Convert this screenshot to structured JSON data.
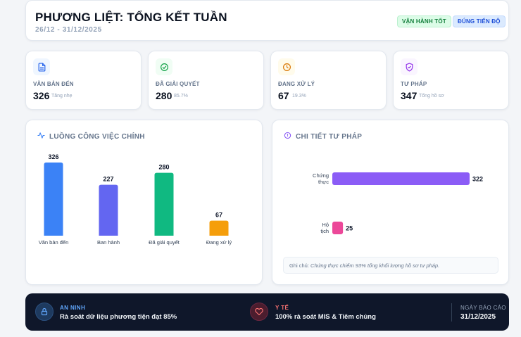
{
  "header": {
    "title": "PHƯƠNG LIỆT: TỔNG KẾT TUẦN",
    "date_range": "26/12 - 31/12/2025",
    "badge_status": "VẬN HÀNH TỐT",
    "badge_schedule": "ĐÚNG TIẾN ĐỘ"
  },
  "stats": [
    {
      "label": "VĂN BẢN ĐẾN",
      "value": "326",
      "sub": "Tăng nhẹ",
      "icon": "document-icon",
      "color": "#2563eb"
    },
    {
      "label": "ĐÃ GIẢI QUYẾT",
      "value": "280",
      "sub": "85.7%",
      "icon": "check-circle-icon",
      "color": "#16a34a"
    },
    {
      "label": "ĐANG XỬ LÝ",
      "value": "67",
      "sub": "19.3%",
      "icon": "clock-icon",
      "color": "#d97706"
    },
    {
      "label": "TƯ PHÁP",
      "value": "347",
      "sub": "Tổng hồ sơ",
      "icon": "shield-check-icon",
      "color": "#9333ea"
    }
  ],
  "workflow_chart": {
    "title": "LUỒNG CÔNG VIỆC CHÍNH",
    "icon": "activity-icon"
  },
  "justice_chart": {
    "title": "CHI TIẾT TƯ PHÁP",
    "icon": "info-circle-icon",
    "note_prefix": "Ghi chú:",
    "note_text": "Chứng thực chiếm 93% tổng khối lượng hồ sơ tư pháp."
  },
  "footer": {
    "security_label": "AN NINH",
    "security_text": "Rà soát dữ liệu phương tiện đạt 85%",
    "health_label": "Y TẾ",
    "health_text": "100% rà soát MIS & Tiêm chủng",
    "report_date_label": "NGÀY BÁO CÁO",
    "report_date": "31/12/2025"
  },
  "chart_data": [
    {
      "type": "bar",
      "title": "LUỒNG CÔNG VIỆC CHÍNH",
      "categories": [
        "Văn bản đến",
        "Ban hành",
        "Đã giải quyết",
        "Đang xử lý"
      ],
      "values": [
        326,
        227,
        280,
        67
      ],
      "colors": [
        "#3b82f6",
        "#6366f1",
        "#10b981",
        "#f59e0b"
      ],
      "ylim": [
        0,
        326
      ],
      "xlabel": "",
      "ylabel": ""
    },
    {
      "type": "bar",
      "orientation": "horizontal",
      "title": "CHI TIẾT TƯ PHÁP",
      "categories": [
        "Chứng thực",
        "Hộ tịch"
      ],
      "values": [
        322,
        25
      ],
      "colors": [
        "#8b5cf6",
        "#ec4899"
      ],
      "xlim": [
        0,
        322
      ],
      "xlabel": "",
      "ylabel": ""
    }
  ]
}
